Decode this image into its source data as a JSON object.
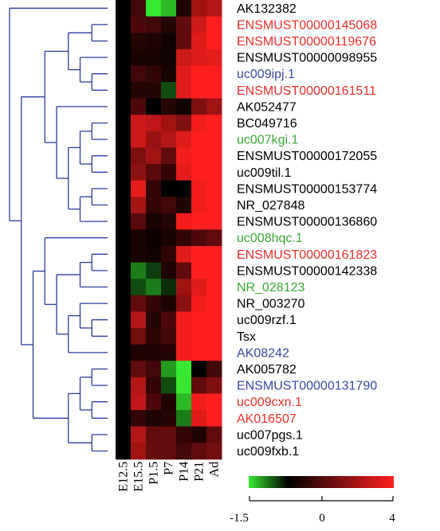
{
  "chart_data": {
    "type": "heatmap",
    "title": "",
    "columns": [
      "E12.5",
      "E15.5",
      "P1.5",
      "P7",
      "P14",
      "P21",
      "Ad"
    ],
    "rows": [
      {
        "label": "AK132382",
        "color": "#000000",
        "values": [
          0.0,
          1.0,
          -1.5,
          -1.2,
          0.5,
          2.5,
          2.8
        ]
      },
      {
        "label": "ENSMUST00000145068",
        "color": "#e8302c",
        "values": [
          0.0,
          1.2,
          1.0,
          0.6,
          1.5,
          3.2,
          4.0
        ]
      },
      {
        "label": "ENSMUST00000119676",
        "color": "#e8302c",
        "values": [
          0.0,
          0.6,
          0.5,
          0.3,
          1.5,
          3.5,
          4.0
        ]
      },
      {
        "label": "ENSMUST00000098955",
        "color": "#000000",
        "values": [
          0.0,
          0.4,
          0.4,
          0.3,
          3.2,
          3.5,
          3.6
        ]
      },
      {
        "label": "uc009ipj.1",
        "color": "#3a4aa0",
        "values": [
          0.0,
          1.0,
          0.8,
          0.4,
          3.5,
          4.0,
          4.0
        ]
      },
      {
        "label": "ENSMUST00000161511",
        "color": "#e8302c",
        "values": [
          0.0,
          0.6,
          0.6,
          -0.5,
          3.5,
          4.0,
          4.0
        ]
      },
      {
        "label": "AK052477",
        "color": "#000000",
        "values": [
          0.0,
          1.2,
          0.0,
          0.6,
          0.3,
          2.0,
          2.5
        ]
      },
      {
        "label": "BC049716",
        "color": "#000000",
        "values": [
          0.0,
          3.2,
          3.0,
          2.5,
          2.0,
          3.8,
          4.0
        ]
      },
      {
        "label": "uc007kgi.1",
        "color": "#3aa836",
        "values": [
          0.0,
          3.2,
          2.4,
          2.8,
          3.5,
          4.0,
          4.0
        ]
      },
      {
        "label": "ENSMUST00000172055",
        "color": "#000000",
        "values": [
          0.0,
          2.0,
          2.5,
          1.5,
          3.8,
          4.0,
          4.0
        ]
      },
      {
        "label": "uc009til.1",
        "color": "#000000",
        "values": [
          0.0,
          2.2,
          1.4,
          0.8,
          3.6,
          4.0,
          4.0
        ]
      },
      {
        "label": "ENSMUST00000153774",
        "color": "#000000",
        "values": [
          0.0,
          3.6,
          0.8,
          0.0,
          0.0,
          3.8,
          4.0
        ]
      },
      {
        "label": "NR_027848",
        "color": "#000000",
        "values": [
          0.0,
          2.6,
          0.8,
          1.0,
          0.5,
          3.8,
          4.0
        ]
      },
      {
        "label": "ENSMUST00000136860",
        "color": "#000000",
        "values": [
          0.0,
          1.4,
          0.4,
          0.6,
          3.8,
          4.0,
          4.0
        ]
      },
      {
        "label": "uc008hqc.1",
        "color": "#3aa836",
        "values": [
          0.0,
          0.4,
          0.2,
          0.4,
          0.8,
          1.2,
          1.5
        ]
      },
      {
        "label": "ENSMUST00000161823",
        "color": "#e8302c",
        "values": [
          0.0,
          0.4,
          0.3,
          0.8,
          3.5,
          4.0,
          4.0
        ]
      },
      {
        "label": "ENSMUST00000142338",
        "color": "#000000",
        "values": [
          0.0,
          -0.8,
          -0.4,
          0.5,
          1.5,
          4.0,
          4.0
        ]
      },
      {
        "label": "NR_028123",
        "color": "#3aa836",
        "values": [
          0.0,
          -0.5,
          -0.8,
          -0.3,
          2.5,
          3.5,
          4.0
        ]
      },
      {
        "label": "NR_003270",
        "color": "#000000",
        "values": [
          0.0,
          1.5,
          0.8,
          0.5,
          2.2,
          3.8,
          4.0
        ]
      },
      {
        "label": "uc009rzf.1",
        "color": "#000000",
        "values": [
          0.0,
          2.8,
          0.6,
          1.2,
          3.8,
          4.0,
          4.0
        ]
      },
      {
        "label": "Tsx",
        "color": "#000000",
        "values": [
          0.0,
          1.8,
          0.7,
          1.0,
          3.8,
          4.0,
          4.0
        ]
      },
      {
        "label": "AK08242",
        "color": "#3a4aa0",
        "values": [
          0.0,
          0.5,
          0.5,
          0.6,
          3.8,
          4.0,
          4.0
        ]
      },
      {
        "label": "AK005782",
        "color": "#000000",
        "values": [
          0.0,
          1.5,
          1.0,
          -1.0,
          -1.5,
          0.0,
          1.0
        ]
      },
      {
        "label": "ENSMUST00000131790",
        "color": "#3a4aa0",
        "values": [
          0.0,
          2.8,
          0.8,
          -0.5,
          -1.5,
          1.5,
          2.0
        ]
      },
      {
        "label": "uc009cxn.1",
        "color": "#e8302c",
        "values": [
          0.0,
          3.0,
          1.2,
          0.5,
          -1.2,
          3.8,
          4.0
        ]
      },
      {
        "label": "AK016507",
        "color": "#e8302c",
        "values": [
          0.0,
          0.8,
          0.5,
          0.6,
          -0.8,
          3.5,
          4.0
        ]
      },
      {
        "label": "uc007pgs.1",
        "color": "#000000",
        "values": [
          0.0,
          2.8,
          1.5,
          1.5,
          0.8,
          0.5,
          1.5
        ]
      },
      {
        "label": "uc009fxb.1",
        "color": "#000000",
        "values": [
          0.0,
          2.5,
          1.6,
          1.5,
          1.0,
          1.5,
          1.8
        ]
      }
    ],
    "color_scale": {
      "min": -1.5,
      "mid": 0,
      "max": 4,
      "tick_labels": [
        "-1.5",
        "0",
        "4"
      ],
      "low_color": "#36e830",
      "mid_color": "#000000",
      "high_color": "#ff1f1f"
    },
    "dendrogram": {
      "side": "left",
      "color": "#2e3d9c",
      "tree": {
        "c": [
          {
            "l": 0
          },
          {
            "c": [
              {
                "c": [
                  {
                    "c": [
                      {
                        "c": [
                          {
                            "l": 1
                          },
                          {
                            "l": 2
                          }
                        ]
                      },
                      {
                        "c": [
                          {
                            "l": 3
                          },
                          {
                            "c": [
                              {
                                "l": 4
                              },
                              {
                                "l": 5
                              }
                            ]
                          }
                        ]
                      }
                    ]
                  },
                  {
                    "c": [
                      {
                        "l": 6
                      },
                      {
                        "c": [
                          {
                            "c": [
                              {
                                "c": [
                                  {
                                    "l": 7
                                  },
                                  {
                                    "l": 8
                                  }
                                ]
                              },
                              {
                                "c": [
                                  {
                                    "l": 9
                                  },
                                  {
                                    "l": 10
                                  }
                                ]
                              }
                            ]
                          },
                          {
                            "c": [
                              {
                                "c": [
                                  {
                                    "l": 11
                                  },
                                  {
                                    "l": 12
                                  }
                                ]
                              },
                              {
                                "l": 13
                              }
                            ]
                          }
                        ]
                      }
                    ]
                  }
                ]
              },
              {
                "c": [
                  {
                    "c": [
                      {
                        "l": 14
                      },
                      {
                        "c": [
                          {
                            "c": [
                              {
                                "c": [
                                  {
                                    "l": 15
                                  },
                                  {
                                    "l": 16
                                  }
                                ]
                              },
                              {
                                "l": 17
                              }
                            ]
                          },
                          {
                            "c": [
                              {
                                "c": [
                                  {
                                    "l": 18
                                  },
                                  {
                                    "c": [
                                      {
                                        "l": 19
                                      },
                                      {
                                        "l": 20
                                      }
                                    ]
                                  }
                                ]
                              },
                              {
                                "l": 21
                              }
                            ]
                          }
                        ]
                      }
                    ]
                  },
                  {
                    "c": [
                      {
                        "c": [
                          {
                            "c": [
                              {
                                "l": 22
                              },
                              {
                                "l": 23
                              }
                            ]
                          },
                          {
                            "c": [
                              {
                                "l": 24
                              },
                              {
                                "l": 25
                              }
                            ]
                          }
                        ]
                      },
                      {
                        "c": [
                          {
                            "l": 26
                          },
                          {
                            "l": 27
                          }
                        ]
                      }
                    ]
                  }
                ]
              }
            ]
          }
        ]
      }
    }
  }
}
